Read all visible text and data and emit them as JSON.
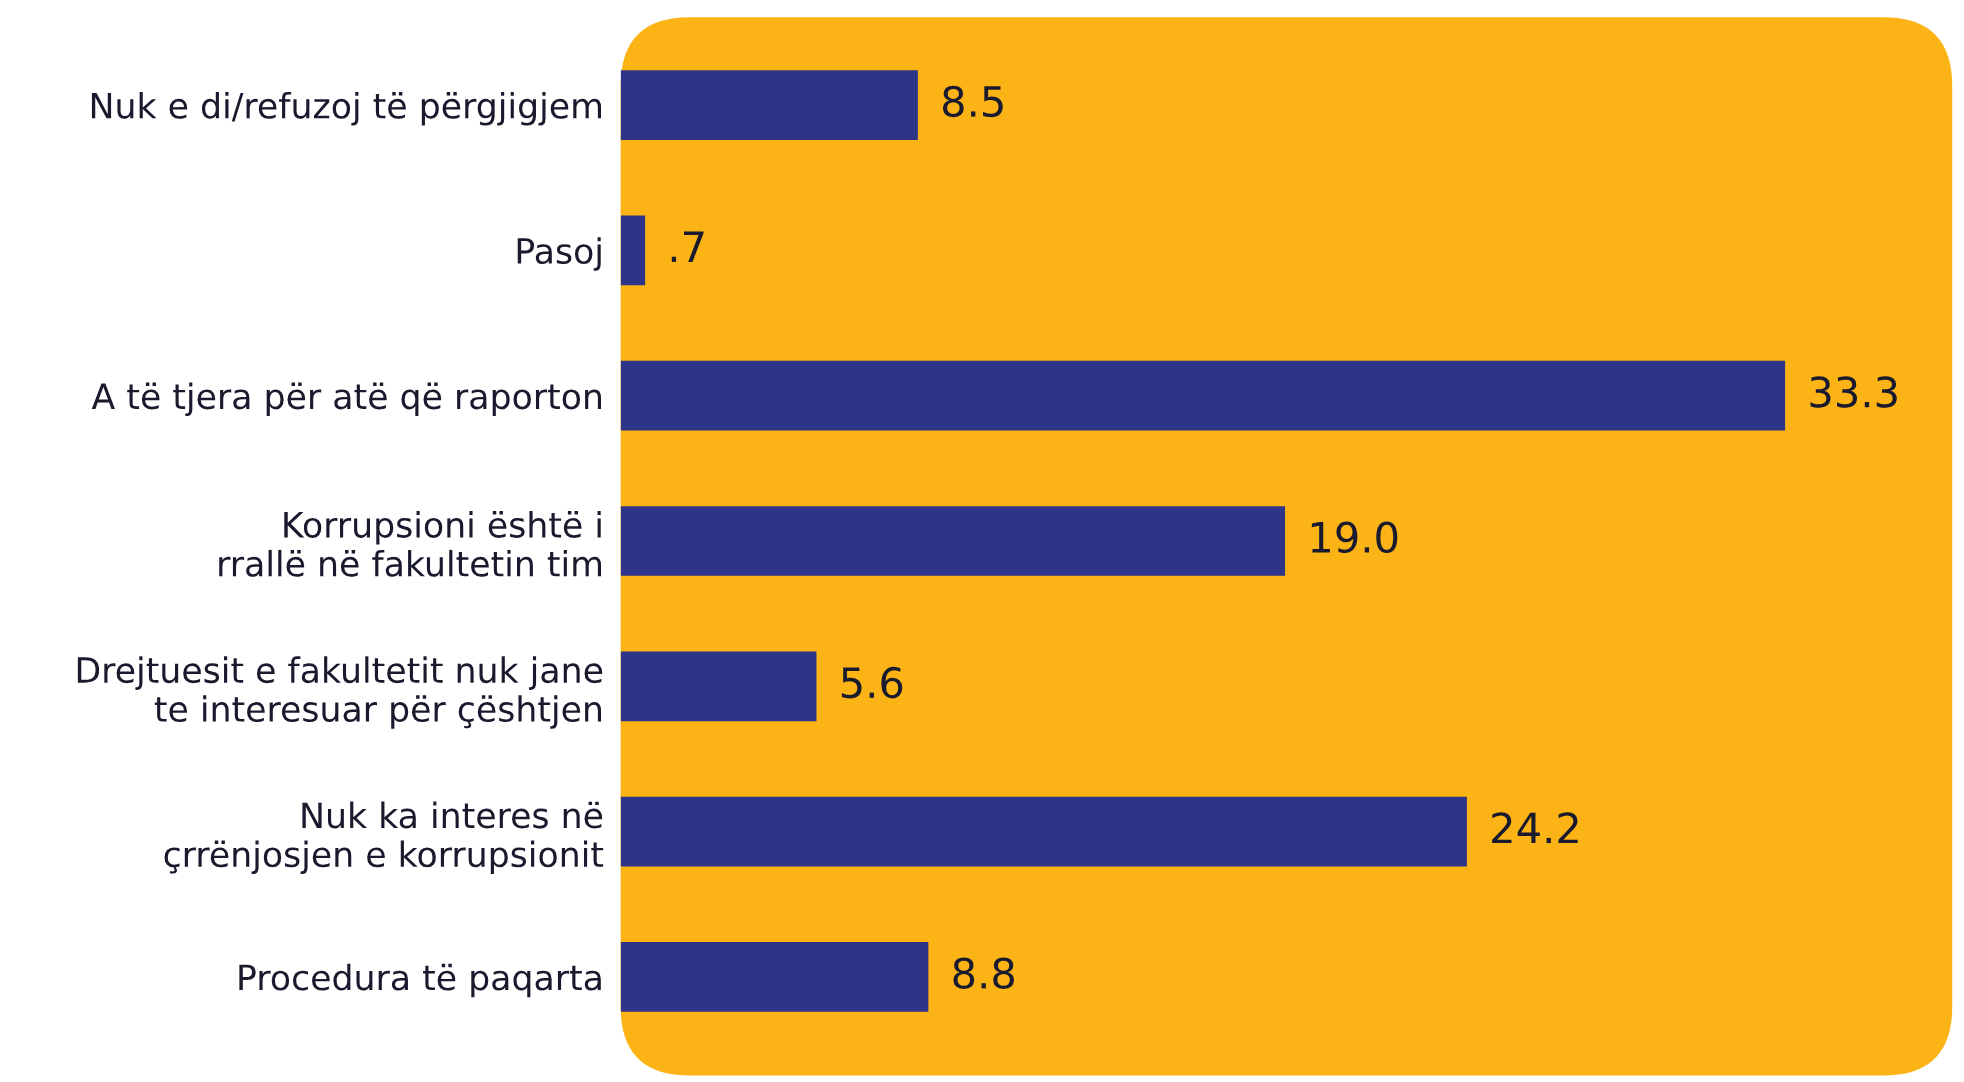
{
  "chart_data": {
    "type": "bar",
    "orientation": "horizontal",
    "categories": [
      "Nuk e di/refuzoj të përgjigjem",
      "Pasoj",
      "A të tjera për atë që raporton",
      "Korrupsioni është i\nrrallë në fakultetin tim",
      "Drejtuesit e fakultetit nuk jane\nte interesuar për çështjen",
      "Nuk ka interes në\nçrrënjosjen e korrupsionit",
      "Procedura të paqarta"
    ],
    "values": [
      8.5,
      0.7,
      33.3,
      19.0,
      5.6,
      24.2,
      8.8
    ],
    "value_labels": [
      "8.5",
      ".7",
      "33.3",
      "19.0",
      "5.6",
      "24.2",
      "8.8"
    ],
    "color": "#2e3487",
    "grid": false,
    "legend": false
  }
}
